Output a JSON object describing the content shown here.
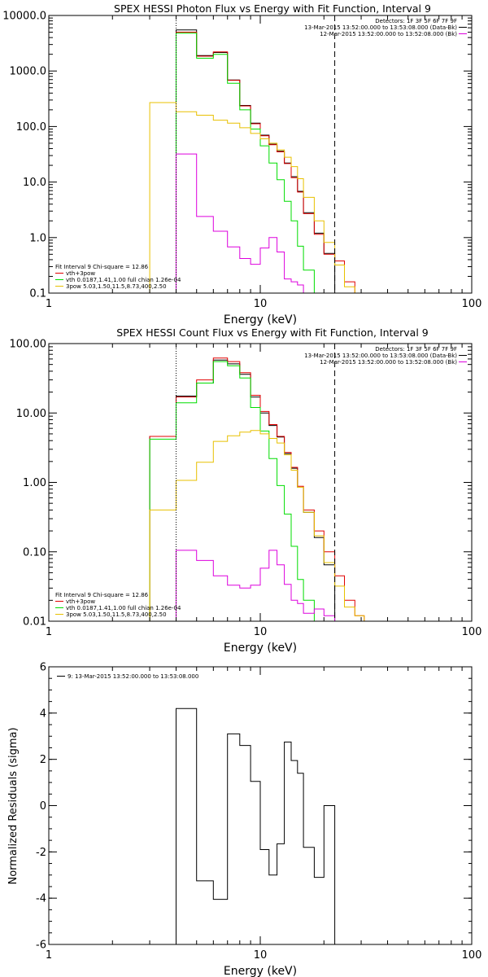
{
  "chart_data": [
    {
      "type": "line",
      "title": "SPEX HESSI Photon Flux vs Energy with Fit Function, Interval 9",
      "xlabel": "Energy (keV)",
      "ylabel": "",
      "xscale": "log",
      "yscale": "log",
      "xlim": [
        1,
        100
      ],
      "ylim": [
        0.1,
        10000
      ],
      "xticks": [
        1,
        10,
        100
      ],
      "xtick_labels": [
        "1",
        "10",
        "100"
      ],
      "yticks": [
        0.1,
        1,
        10,
        100,
        1000,
        10000
      ],
      "ytick_labels": [
        "0.1",
        "1.0",
        "10.0",
        "100.0",
        "1000.0",
        "10000.0"
      ],
      "vlines": [
        {
          "x": 4.0,
          "style": "dotted",
          "color": "#000000"
        },
        {
          "x": 22.5,
          "style": "dashed",
          "color": "#000000"
        }
      ],
      "edges": [
        3.0,
        4.0,
        5.0,
        6.0,
        7.0,
        8.0,
        9.0,
        10.0,
        11.0,
        12.0,
        13.0,
        14.0,
        15.0,
        16.0,
        18.0,
        20.0,
        22.5,
        25.0,
        28.0,
        31.0
      ],
      "series": [
        {
          "name": "",
          "color": "#000000",
          "values": [
            null,
            5500,
            1900,
            2150,
            690,
            240,
            115,
            70,
            48,
            36,
            22,
            12.5,
            6.8,
            2.8,
            1.2,
            0.52,
            null,
            null,
            null
          ]
        },
        {
          "name": "vth+3pow",
          "color": "#e00000",
          "values": [
            null,
            5000,
            1850,
            2200,
            680,
            235,
            112,
            68,
            47,
            35,
            21.5,
            12,
            6.6,
            2.7,
            1.15,
            0.5,
            0.38,
            0.16,
            null
          ]
        },
        {
          "name": "vth 0.0187,1.41,1.00 full chian 1.26e-04",
          "color": "#00dd00",
          "values": [
            null,
            4800,
            1700,
            2000,
            600,
            200,
            90,
            45,
            22,
            11,
            4.5,
            2.0,
            0.7,
            0.26,
            null,
            null,
            null,
            null,
            null
          ]
        },
        {
          "name": "3pow 5.03,1.50,11.5,8.73,400,2.50",
          "color": "#e8c000",
          "values": [
            270,
            185,
            160,
            130,
            115,
            95,
            75,
            60,
            50,
            38,
            28,
            19,
            11.5,
            5.3,
            2.0,
            0.82,
            0.32,
            0.13,
            null
          ]
        },
        {
          "name": "",
          "color": "#dd00dd",
          "values": [
            null,
            32,
            2.4,
            1.3,
            0.68,
            0.42,
            0.33,
            0.65,
            1.0,
            0.55,
            0.18,
            0.16,
            0.14,
            0.1,
            0.1,
            null,
            null,
            null,
            null
          ]
        }
      ],
      "legend_tr": {
        "position": "top-right",
        "lines": [
          {
            "text": "Detectors: 1F 3F 5F 6F 7F 9F",
            "color": ""
          },
          {
            "text": "13-Mar-2015 13:52:00.000 to 13:53:08.000 (Data-Bk)",
            "color": "#000000"
          },
          {
            "text": "12-Mar-2015 13:52:00.000 to 13:52:08.000 (Bk)",
            "color": "#dd00dd"
          }
        ]
      },
      "legend_bl": {
        "position": "bottom-left",
        "lines": [
          {
            "text": "Fit Interval 9   Chi-square = 12.86",
            "color": ""
          },
          {
            "text": "vth+3pow",
            "color": "#e00000"
          },
          {
            "text": "vth 0.0187,1.41,1.00 full chian 1.26e-04",
            "color": "#00dd00"
          },
          {
            "text": "3pow 5.03,1.50,11.5,8.73,400,2.50",
            "color": "#e8c000"
          }
        ]
      }
    },
    {
      "type": "line",
      "title": "SPEX HESSI Count Flux vs Energy with Fit Function, Interval 9",
      "xlabel": "Energy (keV)",
      "ylabel": "",
      "xscale": "log",
      "yscale": "log",
      "xlim": [
        1,
        100
      ],
      "ylim": [
        0.01,
        100
      ],
      "xticks": [
        1,
        10,
        100
      ],
      "xtick_labels": [
        "1",
        "10",
        "100"
      ],
      "yticks": [
        0.01,
        0.1,
        1,
        10,
        100
      ],
      "ytick_labels": [
        "0.01",
        "0.10",
        "1.00",
        "10.00",
        "100.00"
      ],
      "vlines": [
        {
          "x": 4.0,
          "style": "dotted",
          "color": "#000000"
        },
        {
          "x": 22.5,
          "style": "dashed",
          "color": "#000000"
        }
      ],
      "edges": [
        3.0,
        4.0,
        5.0,
        6.0,
        7.0,
        8.0,
        9.0,
        10.0,
        11.0,
        12.0,
        13.0,
        14.0,
        15.0,
        16.0,
        18.0,
        20.0,
        22.5,
        25.0,
        28.0,
        31.0
      ],
      "series": [
        {
          "name": "",
          "color": "#000000",
          "values": [
            4.6,
            17.5,
            27,
            58,
            51,
            36,
            17,
            10,
            6.6,
            4.5,
            2.6,
            1.6,
            0.85,
            0.37,
            0.16,
            0.065,
            null,
            null,
            null
          ]
        },
        {
          "name": "vth+3pow",
          "color": "#e00000",
          "values": [
            4.6,
            17,
            30,
            62,
            55,
            38,
            18,
            10.5,
            6.8,
            4.6,
            2.7,
            1.65,
            0.88,
            0.4,
            0.2,
            0.1,
            0.045,
            0.02,
            0.012
          ]
        },
        {
          "name": "vth 0.0187,1.41,1.00 full chian 1.26e-04",
          "color": "#00dd00",
          "values": [
            4.2,
            14,
            27,
            55,
            48,
            32,
            12,
            5.5,
            2.2,
            0.9,
            0.35,
            0.12,
            0.04,
            0.02,
            null,
            null,
            null,
            null,
            null
          ]
        },
        {
          "name": "3pow 5.03,1.50,11.5,8.73,400,2.50",
          "color": "#e8c000",
          "values": [
            0.4,
            1.07,
            1.95,
            3.9,
            4.7,
            5.3,
            5.6,
            5.0,
            4.3,
            3.7,
            2.5,
            1.5,
            0.85,
            0.37,
            0.17,
            0.07,
            0.032,
            0.016,
            0.012
          ]
        },
        {
          "name": "",
          "color": "#dd00dd",
          "values": [
            null,
            0.105,
            0.075,
            0.045,
            0.033,
            0.03,
            0.033,
            0.058,
            0.105,
            0.065,
            0.034,
            0.02,
            0.018,
            0.013,
            0.015,
            0.012,
            null,
            null,
            null
          ]
        }
      ],
      "legend_tr": {
        "position": "top-right",
        "lines": [
          {
            "text": "Detectors: 1F 3F 5F 6F 7F 9F",
            "color": ""
          },
          {
            "text": "13-Mar-2015 13:52:00.000 to 13:53:08.000 (Data-Bk)",
            "color": "#000000"
          },
          {
            "text": "12-Mar-2015 13:52:00.000 to 13:52:08.000 (Bk)",
            "color": "#dd00dd"
          }
        ]
      },
      "legend_bl": {
        "position": "bottom-left",
        "lines": [
          {
            "text": "Fit Interval 9   Chi-square = 12.86",
            "color": ""
          },
          {
            "text": "vth+3pow",
            "color": "#e00000"
          },
          {
            "text": "vth 0.0187,1.41,1.00 full chian 1.26e-04",
            "color": "#00dd00"
          },
          {
            "text": "3pow 5.03,1.50,11.5,8.73,400,2.50",
            "color": "#e8c000"
          }
        ]
      }
    },
    {
      "type": "line",
      "title": "",
      "xlabel": "Energy (keV)",
      "ylabel": "Normalized Residuals (sigma)",
      "xscale": "log",
      "yscale": "linear",
      "xlim": [
        1,
        100
      ],
      "ylim": [
        -6,
        6
      ],
      "xticks": [
        1,
        10,
        100
      ],
      "xtick_labels": [
        "1",
        "10",
        "100"
      ],
      "yticks": [
        -6,
        -4,
        -2,
        0,
        2,
        4,
        6
      ],
      "ytick_labels": [
        "-6",
        "-4",
        "-2",
        "0",
        "2",
        "4",
        "6"
      ],
      "vlines": [],
      "edges": [
        4.0,
        5.0,
        6.0,
        7.0,
        8.0,
        9.0,
        10.0,
        11.0,
        12.0,
        13.0,
        14.0,
        15.0,
        16.0,
        18.0,
        20.0,
        22.5
      ],
      "series": [
        {
          "name": "",
          "color": "#000000",
          "values": [
            4.2,
            -3.25,
            -4.05,
            3.1,
            2.6,
            1.05,
            -1.9,
            -3.0,
            -1.65,
            2.75,
            1.95,
            1.4,
            -1.8,
            -3.1,
            0
          ]
        }
      ],
      "legend_tl": {
        "position": "top-left",
        "lines": [
          {
            "text": "9: 13-Mar-2015 13:52:00.000 to 13:53:08.000",
            "color": "#000000"
          }
        ]
      }
    }
  ]
}
